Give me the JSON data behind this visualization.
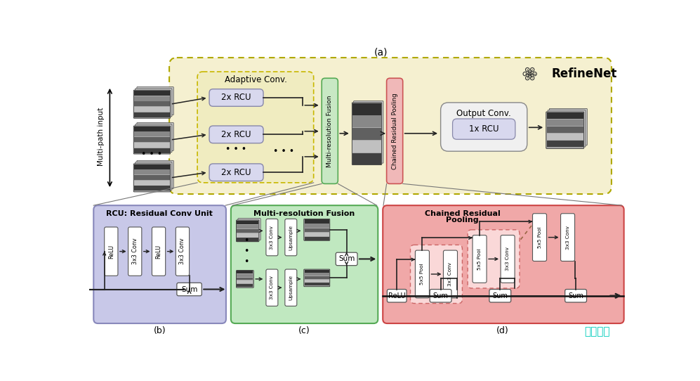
{
  "title_a": "(a)",
  "title_b": "(b)",
  "title_c": "(c)",
  "title_d": "(d)",
  "bg_color": "#ffffff",
  "refinenet_bg": "#f5f0d0",
  "refinenet_edge": "#b0a800",
  "adaptive_bg": "#f0ecc0",
  "adaptive_edge": "#c8b800",
  "rcu_fill": "#d8d8ee",
  "rcu_edge": "#8888aa",
  "mrf_fill": "#c8e8c4",
  "mrf_edge": "#55aa55",
  "crp_fill": "#f0b8b8",
  "crp_edge": "#cc5555",
  "out_conv_fill": "#f0f0f0",
  "out_conv_edge": "#888888",
  "rcu_panel_fill": "#c8c8e8",
  "rcu_panel_edge": "#8888bb",
  "mrf_panel_fill": "#c0e8c0",
  "mrf_panel_edge": "#55aa55",
  "crp_panel_fill": "#f0a8a8",
  "crp_panel_edge": "#cc4444",
  "white_box_fill": "#ffffff",
  "white_box_edge": "#555555",
  "crp_dashed_fill": "#fad8d8",
  "crp_dashed_edge": "#cc6666",
  "watermark_color": "#00ccbb",
  "watermark_text": "谷普下载"
}
